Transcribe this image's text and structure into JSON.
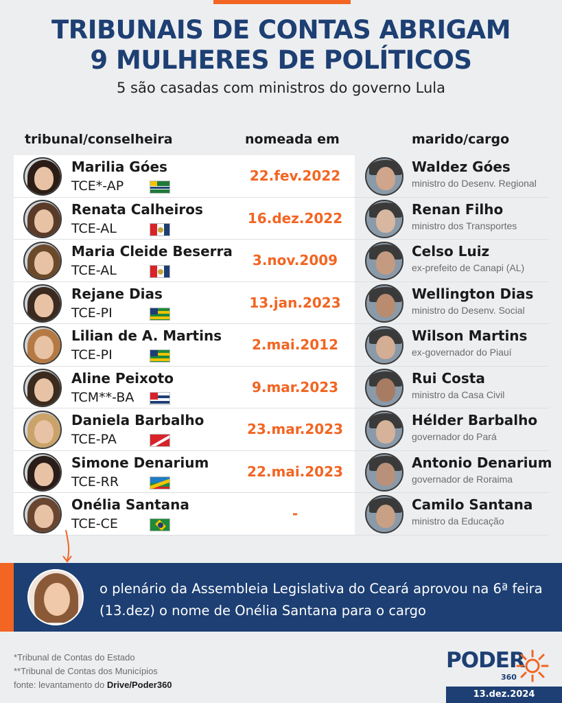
{
  "header": {
    "title_line1": "TRIBUNAIS DE CONTAS ABRIGAM",
    "title_line2": "9 MULHERES DE POLÍTICOS",
    "subtitle": "5 são casadas com ministros do governo Lula"
  },
  "columns": {
    "col1": "tribunal/conselheira",
    "col2": "nomeada em",
    "col3": "marido/cargo"
  },
  "rows": [
    {
      "name": "Marilia Góes",
      "court": "TCE*-AP",
      "date": "22.fev.2022",
      "husband": "Waldez Góes",
      "role": "ministro do Desenv. Regional",
      "flag": "amapa-flag"
    },
    {
      "name": "Renata Calheiros",
      "court": "TCE-AL",
      "date": "16.dez.2022",
      "husband": "Renan Filho",
      "role": "ministro dos Transportes",
      "flag": "alagoas-flag"
    },
    {
      "name": "Maria Cleide Beserra",
      "court": "TCE-AL",
      "date": "3.nov.2009",
      "husband": "Celso Luiz",
      "role": "ex-prefeito de Canapi (AL)",
      "flag": "alagoas-flag"
    },
    {
      "name": "Rejane Dias",
      "court": "TCE-PI",
      "date": "13.jan.2023",
      "husband": "Wellington Dias",
      "role": "ministro do Desenv. Social",
      "flag": "piaui-flag"
    },
    {
      "name": "Lilian de A. Martins",
      "court": "TCE-PI",
      "date": "2.mai.2012",
      "husband": "Wilson Martins",
      "role": "ex-governador do Piauí",
      "flag": "piaui-flag"
    },
    {
      "name": "Aline Peixoto",
      "court": "TCM**-BA",
      "date": "9.mar.2023",
      "husband": "Rui Costa",
      "role": "ministro da Casa Civil",
      "flag": "bahia-flag"
    },
    {
      "name": "Daniela Barbalho",
      "court": "TCE-PA",
      "date": "23.mar.2023",
      "husband": "Hélder Barbalho",
      "role": "governador do Pará",
      "flag": "para-flag"
    },
    {
      "name": "Simone Denarium",
      "court": "TCE-RR",
      "date": "22.mai.2023",
      "husband": "Antonio Denarium",
      "role": "governador de Roraima",
      "flag": "roraima-flag"
    },
    {
      "name": "Onélia Santana",
      "court": "TCE-CE",
      "date": "-",
      "husband": "Camilo Santana",
      "role": "ministro da Educação",
      "flag": "ceara-flag"
    }
  ],
  "banner": {
    "text": "o plenário da Assembleia Legislativa do Ceará aprovou na 6ª feira (13.dez) o nome de Onélia Santana para o cargo"
  },
  "footer": {
    "note1": "*Tribunal de Contas do Estado",
    "note2": "**Tribunal de Contas dos Municípios",
    "source_prefix": "fonte: levantamento do ",
    "source_name": "Drive/Poder360",
    "logo": "PODER",
    "logo_sub": "360",
    "date": "13.dez.2024"
  },
  "colors": {
    "navy": "#1d3f73",
    "orange": "#f26522"
  }
}
